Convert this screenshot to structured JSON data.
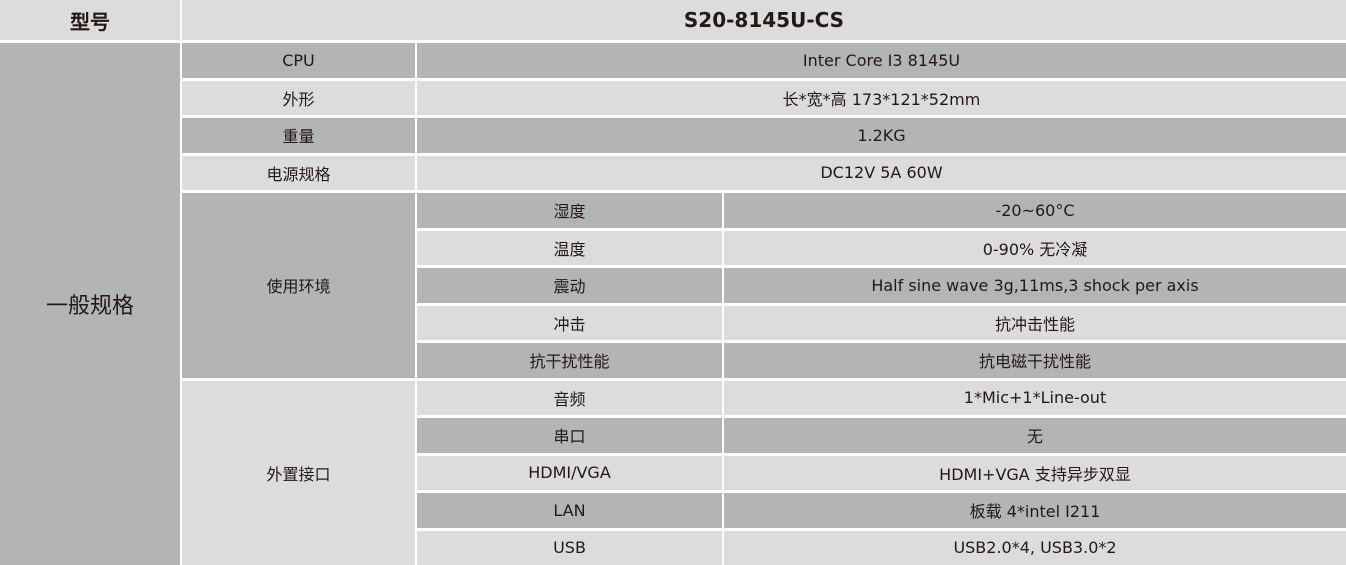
{
  "header": {
    "label": "型号",
    "model": "S20-8145U-CS"
  },
  "group": "一般规格",
  "rows": [
    {
      "label": "CPU",
      "value": "Inter Core I3 8145U"
    },
    {
      "label": "外形",
      "value": "长*宽*高 173*121*52mm"
    },
    {
      "label": "重量",
      "value": "1.2KG"
    },
    {
      "label": "电源规格",
      "value": "DC12V 5A 60W"
    }
  ],
  "env": {
    "label": "使用环境",
    "items": [
      {
        "label": "湿度",
        "value": "-20~60°C"
      },
      {
        "label": "温度",
        "value": "0-90% 无冷凝"
      },
      {
        "label": "震动",
        "value": "Half sine wave 3g,11ms,3 shock per axis"
      },
      {
        "label": "冲击",
        "value": "抗冲击性能"
      },
      {
        "label": "抗干扰性能",
        "value": "抗电磁干扰性能"
      }
    ]
  },
  "io": {
    "label": "外置接口",
    "items": [
      {
        "label": "音频",
        "value": "1*Mic+1*Line-out"
      },
      {
        "label": "串口",
        "value": "无"
      },
      {
        "label": "HDMI/VGA",
        "value": "HDMI+VGA 支持异步双显"
      },
      {
        "label": "LAN",
        "value": "板载 4*intel I211"
      },
      {
        "label": "USB",
        "value": "USB2.0*4, USB3.0*2"
      }
    ]
  }
}
